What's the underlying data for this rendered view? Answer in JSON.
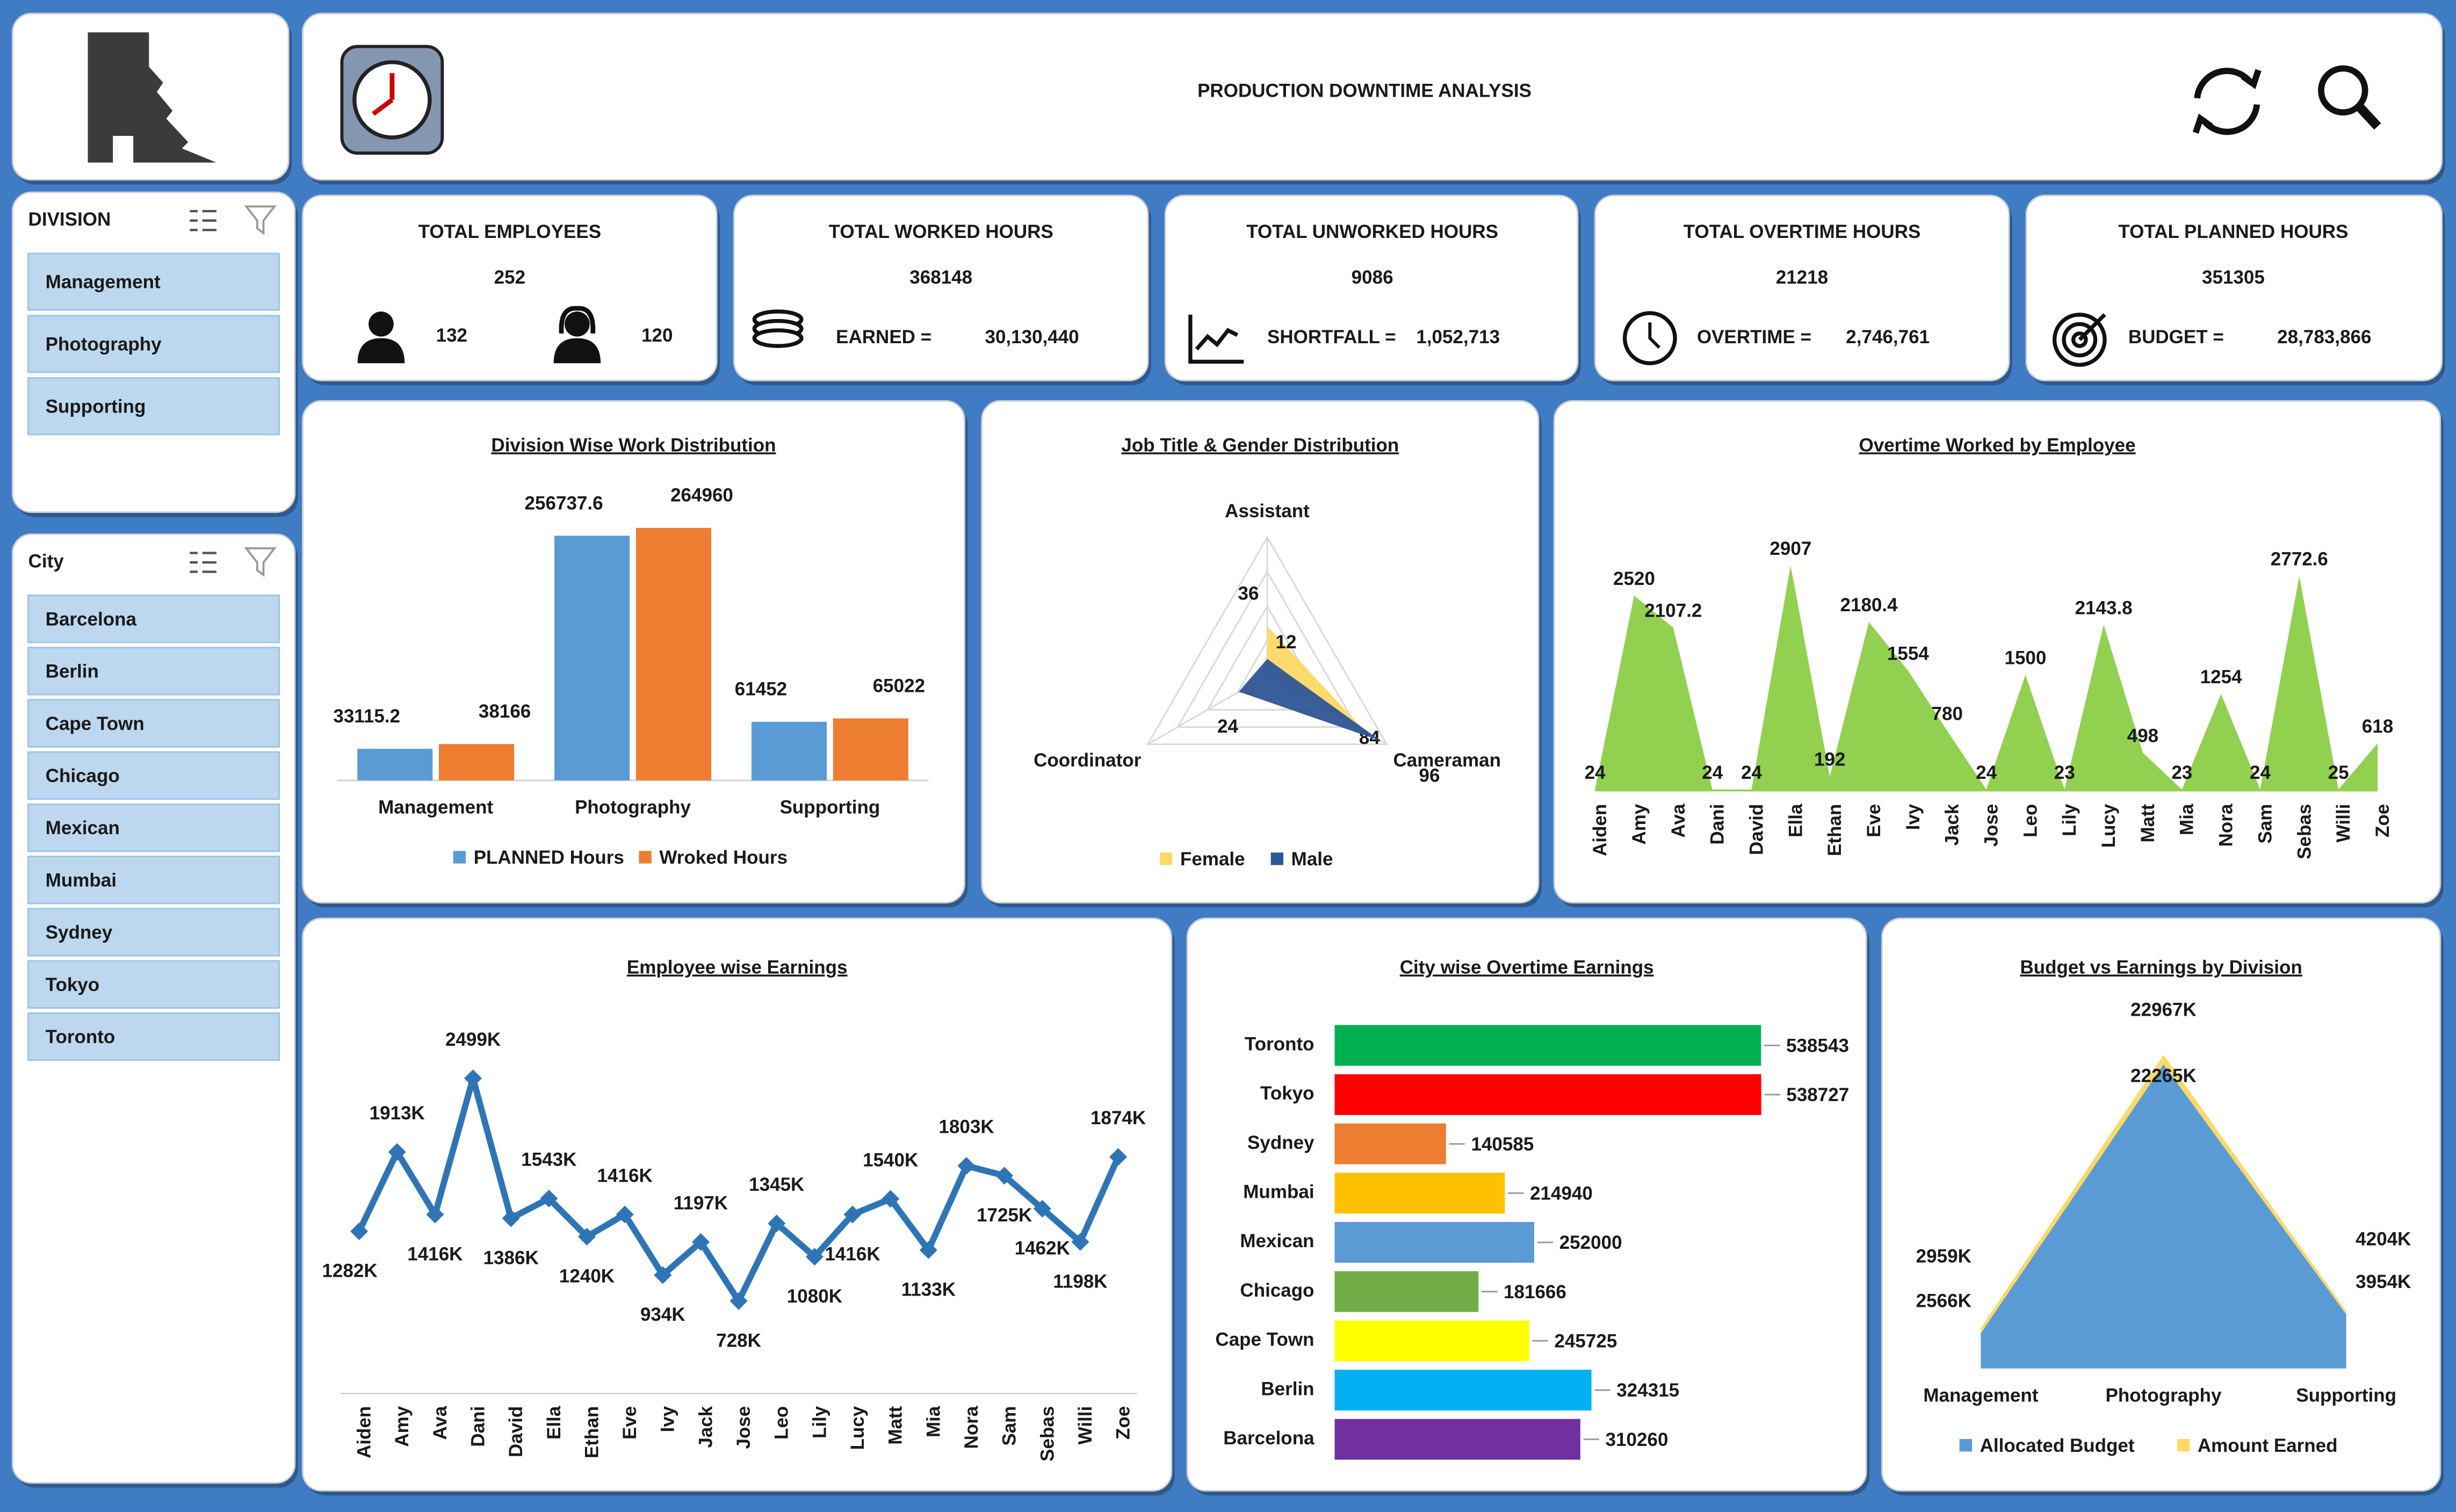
{
  "header": {
    "title": "PRODUCTION DOWNTIME ANALYSIS"
  },
  "slicers": [
    {
      "title": "DIVISION",
      "items": [
        "Management",
        "Photography",
        "Supporting"
      ]
    },
    {
      "title": "City",
      "items": [
        "Barcelona",
        "Berlin",
        "Cape Town",
        "Chicago",
        "Mexican",
        "Mumbai",
        "Sydney",
        "Tokyo",
        "Toronto"
      ]
    }
  ],
  "kpis": [
    {
      "title": "TOTAL EMPLOYEES",
      "value": 252,
      "male": 132,
      "female": 120
    },
    {
      "title": "TOTAL WORKED HOURS",
      "value": 368148,
      "label": "EARNED =",
      "amount": "30,130,440"
    },
    {
      "title": "TOTAL UNWORKED HOURS",
      "value": 9086,
      "label": "SHORTFALL =",
      "amount": "1,052,713"
    },
    {
      "title": "TOTAL OVERTIME HOURS",
      "value": 21218,
      "label": "OVERTIME =",
      "amount": "2,746,761"
    },
    {
      "title": "TOTAL PLANNED HOURS",
      "value": 351305,
      "label": "BUDGET =",
      "amount": "28,783,866"
    }
  ],
  "chart_data": [
    {
      "type": "bar",
      "title": "Division Wise Work Distribution",
      "categories": [
        "Management",
        "Photography",
        "Supporting"
      ],
      "series": [
        {
          "name": "PLANNED Hours",
          "color": "#5b9bd5",
          "values": [
            33115.2,
            256737.6,
            61452
          ]
        },
        {
          "name": "Wroked Hours",
          "color": "#ed7d31",
          "values": [
            38166,
            264960,
            65022
          ]
        }
      ],
      "legend": "bottom"
    },
    {
      "type": "radar",
      "title": "Job Title & Gender Distribution",
      "categories": [
        "Assistant",
        "Cameraman",
        "Coordinator"
      ],
      "series": [
        {
          "name": "Female",
          "color": "#ffd966",
          "values": [
            36,
            84,
            0
          ]
        },
        {
          "name": "Male",
          "color": "#2f5597",
          "values": [
            12,
            96,
            24
          ]
        }
      ],
      "legend": "bottom"
    },
    {
      "type": "area",
      "title": "Overtime Worked by Employee",
      "categories": [
        "Aiden",
        "Amy",
        "Ava",
        "Dani",
        "David",
        "Ella",
        "Ethan",
        "Eve",
        "Ivy",
        "Jack",
        "Jose",
        "Leo",
        "Lily",
        "Lucy",
        "Matt",
        "Mia",
        "Nora",
        "Sam",
        "Sebas",
        "Willi",
        "Zoe"
      ],
      "values": [
        24,
        2520,
        2107.2,
        24,
        24,
        2907,
        192,
        2180.4,
        1554,
        780,
        24,
        1500,
        23,
        2143.8,
        498,
        23,
        1254,
        24,
        2772.6,
        25,
        618
      ],
      "color": "#92d050"
    },
    {
      "type": "line",
      "title": "Employee wise Earnings",
      "categories": [
        "Aiden",
        "Amy",
        "Ava",
        "Dani",
        "David",
        "Ella",
        "Ethan",
        "Eve",
        "Ivy",
        "Jack",
        "Jose",
        "Leo",
        "Lily",
        "Lucy",
        "Matt",
        "Mia",
        "Nora",
        "Sam",
        "Sebas",
        "Willi",
        "Zoe"
      ],
      "values": [
        1282000,
        1913000,
        1416000,
        2499000,
        1386000,
        1543000,
        1240000,
        1416000,
        934000,
        1197000,
        728000,
        1345000,
        1080000,
        1416000,
        1540000,
        1133000,
        1803000,
        1725000,
        1462000,
        1198000,
        1874000
      ],
      "value_labels": [
        "1282K",
        "1913K",
        "1416K",
        "2499K",
        "1386K",
        "1543K",
        "1240K",
        "1416K",
        "934K",
        "1197K",
        "728K",
        "1345K",
        "1080K",
        "1416K",
        "1540K",
        "1133K",
        "1803K",
        "1725K",
        "1462K",
        "1198K",
        "1874K"
      ],
      "color": "#2e75b6"
    },
    {
      "type": "hbar",
      "title": "City wise Overtime Earnings",
      "categories": [
        "Toronto",
        "Tokyo",
        "Sydney",
        "Mumbai",
        "Mexican",
        "Chicago",
        "Cape Town",
        "Berlin",
        "Barcelona"
      ],
      "values": [
        538543,
        538727,
        140585,
        214940,
        252000,
        181666,
        245725,
        324315,
        310260
      ],
      "colors": [
        "#00b050",
        "#ff0000",
        "#ed7d31",
        "#ffc000",
        "#5b9bd5",
        "#70ad47",
        "#ffff00",
        "#00b0f0",
        "#7030a0"
      ]
    },
    {
      "type": "area",
      "title": "Budget vs Earnings by Division",
      "categories": [
        "Management",
        "Photography",
        "Supporting"
      ],
      "series": [
        {
          "name": "Allocated Budget",
          "color": "#5b9bd5",
          "values": [
            2566000,
            22265000,
            3954000
          ],
          "value_labels": [
            "2566K",
            "22265K",
            "3954K"
          ]
        },
        {
          "name": "Amount Earned",
          "color": "#ffd966",
          "values": [
            2959000,
            22967000,
            4204000
          ],
          "value_labels": [
            "2959K",
            "22967K",
            "4204K"
          ]
        }
      ],
      "legend": "bottom"
    }
  ]
}
